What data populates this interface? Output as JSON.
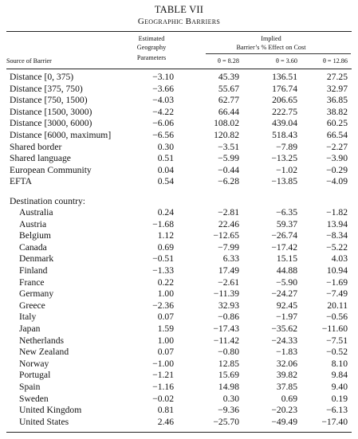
{
  "table": {
    "title": "TABLE VII",
    "subtitle": "Geographic Barriers",
    "headers": {
      "source": "Source of Barrier",
      "estimated": [
        "Estimated",
        "Geography",
        "Parameters"
      ],
      "implied": [
        "Implied",
        "Barrier’s % Effect on Cost"
      ],
      "theta": [
        "θ = 8.28",
        "θ = 3.60",
        "θ = 12.86"
      ]
    },
    "section_label": "Destination country:",
    "rows_top": [
      {
        "label": "Distance [0, 375)",
        "values": [
          "−3.10",
          "45.39",
          "136.51",
          "27.25"
        ]
      },
      {
        "label": "Distance [375, 750)",
        "values": [
          "−3.66",
          "55.67",
          "176.74",
          "32.97"
        ]
      },
      {
        "label": "Distance [750, 1500)",
        "values": [
          "−4.03",
          "62.77",
          "206.65",
          "36.85"
        ]
      },
      {
        "label": "Distance [1500, 3000)",
        "values": [
          "−4.22",
          "66.44",
          "222.75",
          "38.82"
        ]
      },
      {
        "label": "Distance [3000, 6000)",
        "values": [
          "−6.06",
          "108.02",
          "439.04",
          "60.25"
        ]
      },
      {
        "label": "Distance [6000, maximum]",
        "values": [
          "−6.56",
          "120.82",
          "518.43",
          "66.54"
        ]
      },
      {
        "label": "Shared border",
        "values": [
          "0.30",
          "−3.51",
          "−7.89",
          "−2.27"
        ]
      },
      {
        "label": "Shared language",
        "values": [
          "0.51",
          "−5.99",
          "−13.25",
          "−3.90"
        ]
      },
      {
        "label": "European Community",
        "values": [
          "0.04",
          "−0.44",
          "−1.02",
          "−0.29"
        ]
      },
      {
        "label": "EFTA",
        "values": [
          "0.54",
          "−6.28",
          "−13.85",
          "−4.09"
        ]
      }
    ],
    "rows_countries": [
      {
        "label": "Australia",
        "values": [
          "0.24",
          "−2.81",
          "−6.35",
          "−1.82"
        ]
      },
      {
        "label": "Austria",
        "values": [
          "−1.68",
          "22.46",
          "59.37",
          "13.94"
        ]
      },
      {
        "label": "Belgium",
        "values": [
          "1.12",
          "−12.65",
          "−26.74",
          "−8.34"
        ]
      },
      {
        "label": "Canada",
        "values": [
          "0.69",
          "−7.99",
          "−17.42",
          "−5.22"
        ]
      },
      {
        "label": "Denmark",
        "values": [
          "−0.51",
          "6.33",
          "15.15",
          "4.03"
        ]
      },
      {
        "label": "Finland",
        "values": [
          "−1.33",
          "17.49",
          "44.88",
          "10.94"
        ]
      },
      {
        "label": "France",
        "values": [
          "0.22",
          "−2.61",
          "−5.90",
          "−1.69"
        ]
      },
      {
        "label": "Germany",
        "values": [
          "1.00",
          "−11.39",
          "−24.27",
          "−7.49"
        ]
      },
      {
        "label": "Greece",
        "values": [
          "−2.36",
          "32.93",
          "92.45",
          "20.11"
        ]
      },
      {
        "label": "Italy",
        "values": [
          "0.07",
          "−0.86",
          "−1.97",
          "−0.56"
        ]
      },
      {
        "label": "Japan",
        "values": [
          "1.59",
          "−17.43",
          "−35.62",
          "−11.60"
        ]
      },
      {
        "label": "Netherlands",
        "values": [
          "1.00",
          "−11.42",
          "−24.33",
          "−7.51"
        ]
      },
      {
        "label": "New Zealand",
        "values": [
          "0.07",
          "−0.80",
          "−1.83",
          "−0.52"
        ]
      },
      {
        "label": "Norway",
        "values": [
          "−1.00",
          "12.85",
          "32.06",
          "8.10"
        ]
      },
      {
        "label": "Portugal",
        "values": [
          "−1.21",
          "15.69",
          "39.82",
          "9.84"
        ]
      },
      {
        "label": "Spain",
        "values": [
          "−1.16",
          "14.98",
          "37.85",
          "9.40"
        ]
      },
      {
        "label": "Sweden",
        "values": [
          "−0.02",
          "0.30",
          "0.69",
          "0.19"
        ]
      },
      {
        "label": "United Kingdom",
        "values": [
          "0.81",
          "−9.36",
          "−20.23",
          "−6.13"
        ]
      },
      {
        "label": "United States",
        "values": [
          "2.46",
          "−25.70",
          "−49.49",
          "−17.40"
        ]
      }
    ]
  }
}
